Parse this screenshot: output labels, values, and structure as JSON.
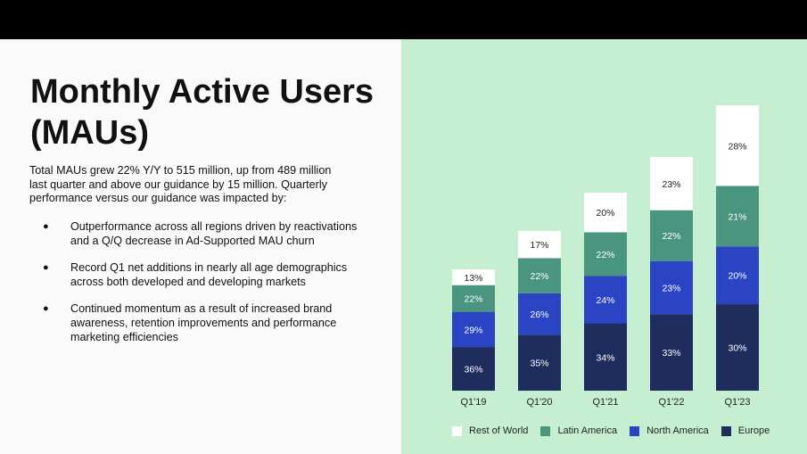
{
  "slide": {
    "title": "Monthly Active Users (MAUs)",
    "intro": "Total MAUs grew 22% Y/Y to 515 million, up from 489 million last quarter and above our guidance by 15 million. Quarterly performance versus our guidance was impacted by:",
    "bullets": [
      "Outperformance across all regions driven by reactivations and a Q/Q decrease in Ad-Supported MAU churn",
      "Record Q1 net additions in nearly all age demographics across both developed and developing markets",
      "Continued momentum as a result of increased brand awareness, retention improvements and performance marketing efficiencies"
    ],
    "bullet_glyph": "●",
    "colors": {
      "right_panel": "#c5efd0",
      "rest_of_world": "#ffffff",
      "latin_america": "#4a9580",
      "north_america": "#2b44c4",
      "europe": "#1f2d5e"
    }
  },
  "chart_data": {
    "type": "bar",
    "stacked": true,
    "categories": [
      "Q1'19",
      "Q1'20",
      "Q1'21",
      "Q1'22",
      "Q1'23"
    ],
    "series": [
      {
        "name": "Europe",
        "values": [
          36,
          35,
          34,
          33,
          30
        ],
        "labels": [
          "36%",
          "35%",
          "34%",
          "33%",
          "30%"
        ],
        "color": "#1f2d5e"
      },
      {
        "name": "North America",
        "values": [
          29,
          26,
          24,
          23,
          20
        ],
        "labels": [
          "29%",
          "26%",
          "24%",
          "23%",
          "20%"
        ],
        "color": "#2b44c4"
      },
      {
        "name": "Latin America",
        "values": [
          22,
          22,
          22,
          22,
          21
        ],
        "labels": [
          "22%",
          "22%",
          "22%",
          "22%",
          "21%"
        ],
        "color": "#4a9580"
      },
      {
        "name": "Rest of World",
        "values": [
          13,
          17,
          20,
          23,
          28
        ],
        "labels": [
          "13%",
          "17%",
          "20%",
          "23%",
          "28%"
        ],
        "color": "#ffffff"
      }
    ],
    "legend": [
      "Rest of World",
      "Latin America",
      "North America",
      "Europe"
    ],
    "legend_position": "bottom",
    "grid": false
  }
}
